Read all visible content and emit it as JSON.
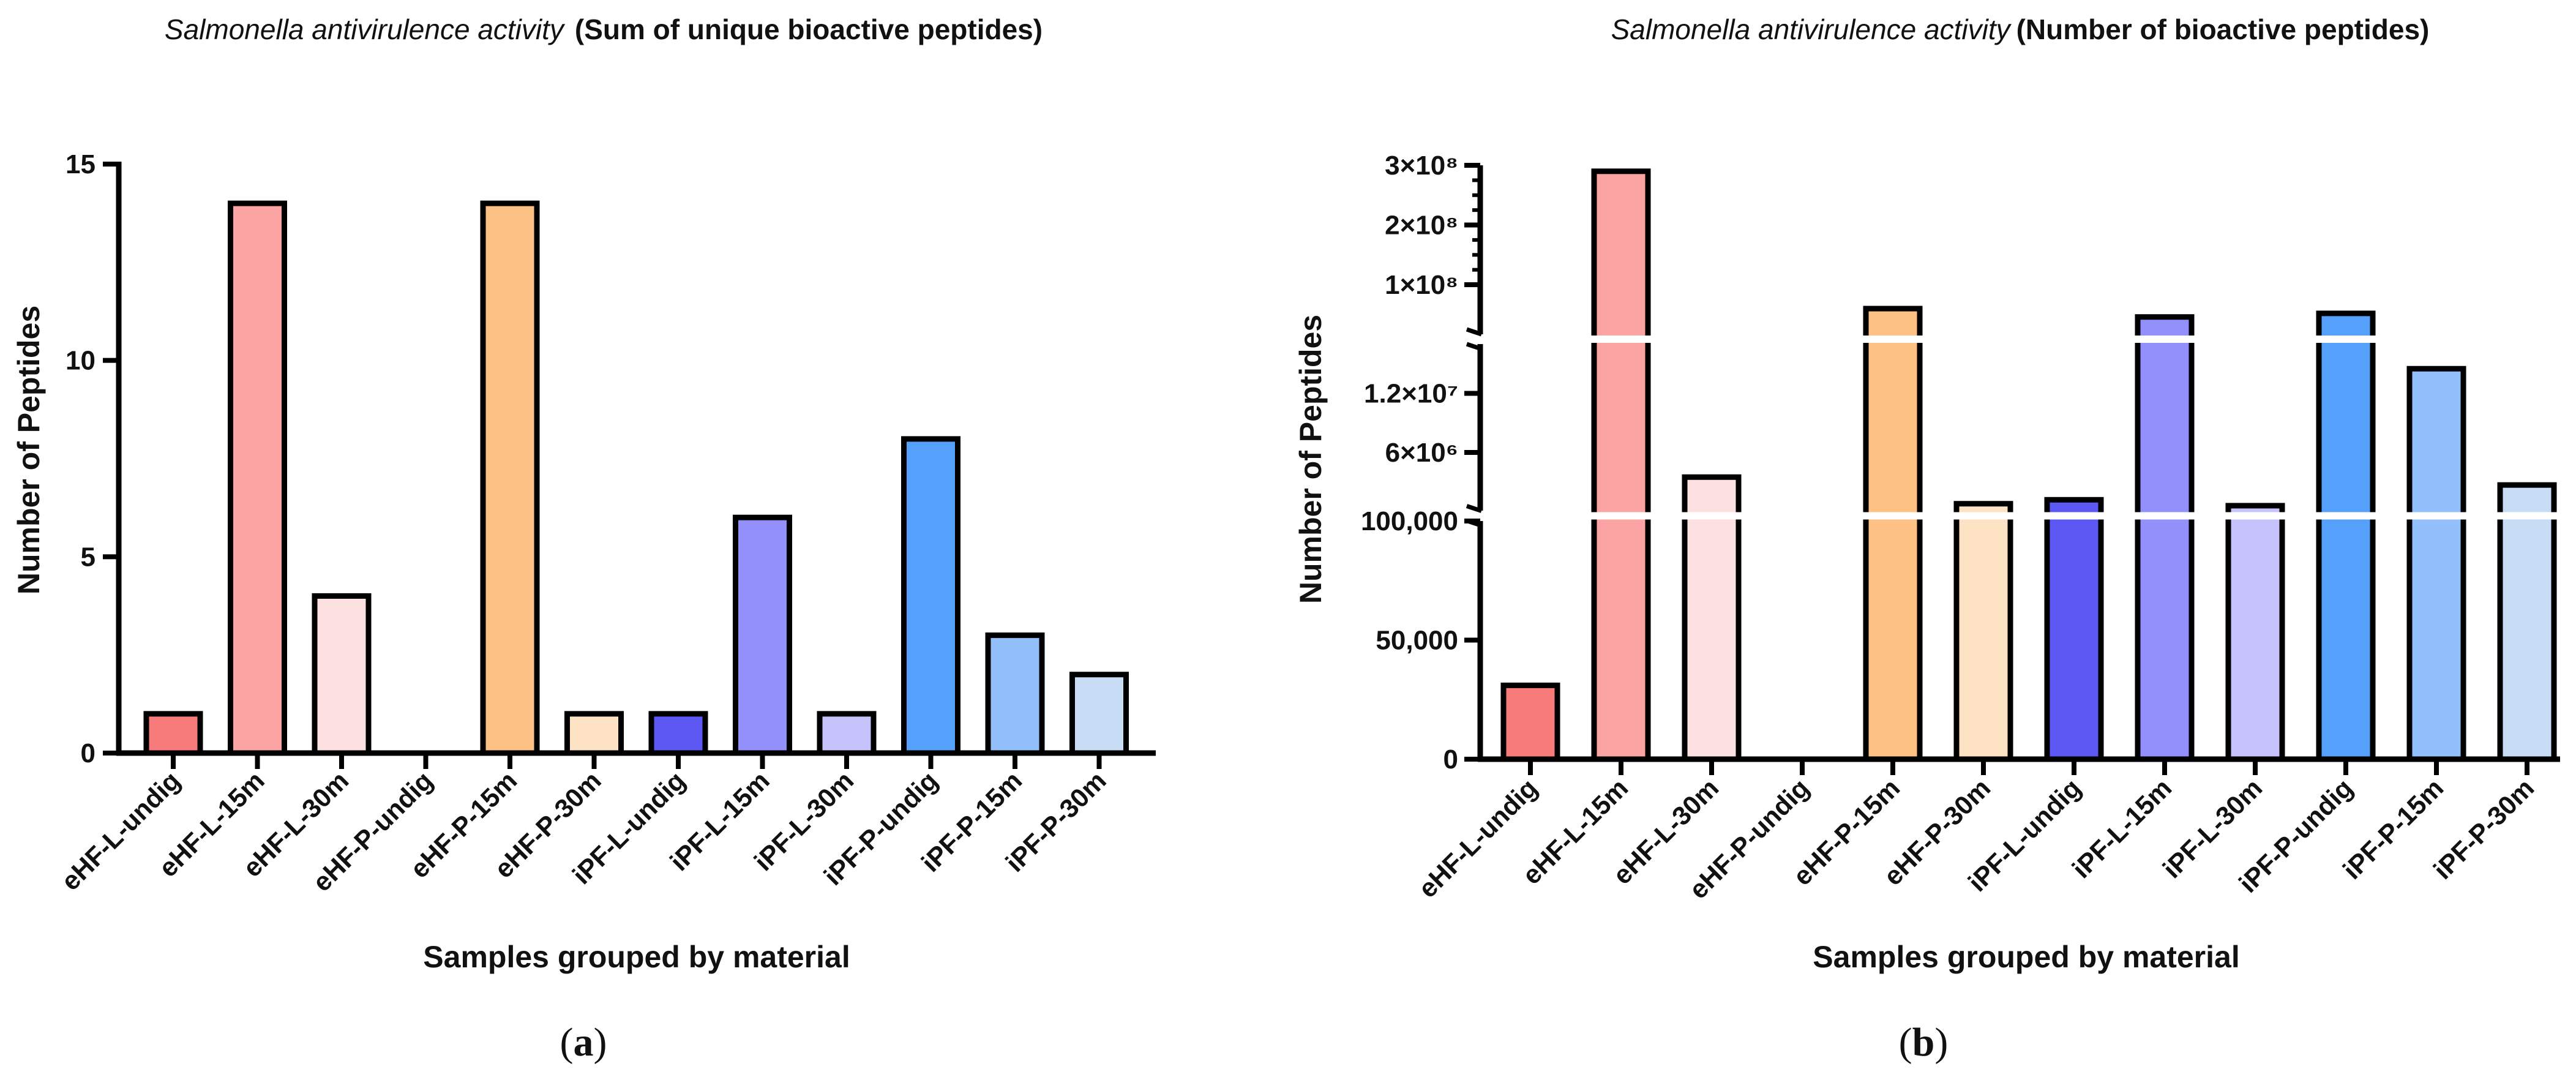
{
  "chart_data": [
    {
      "id": "a",
      "type": "bar",
      "title_italic": "Salmonella antivirulence activity",
      "title_bold": "(Sum of unique bioactive peptides)",
      "xlabel": "Samples grouped by material",
      "ylabel": "Number of Peptides",
      "ylim": [
        0,
        15
      ],
      "yticks": [
        0,
        5,
        10,
        15
      ],
      "ytick_labels": [
        "0",
        "5",
        "10",
        "15"
      ],
      "categories": [
        "eHF-L-undig",
        "eHF-L-15m",
        "eHF-L-30m",
        "eHF-P-undig",
        "eHF-P-15m",
        "eHF-P-30m",
        "iPF-L-undig",
        "iPF-L-15m",
        "iPF-L-30m",
        "iPF-P-undig",
        "iPF-P-15m",
        "iPF-P-30m"
      ],
      "values": [
        1,
        14,
        4,
        0,
        14,
        1,
        1,
        6,
        1,
        8,
        3,
        2
      ],
      "colors": [
        "#f77b7b",
        "#fca3a3",
        "#fde0e0",
        "#ffffff",
        "#fdc183",
        "#fee2c4",
        "#5b58f3",
        "#9390fb",
        "#c6c3fc",
        "#55a0fa",
        "#93c0fa",
        "#c8dcf6"
      ],
      "panel_label": [
        "(",
        "a",
        ")"
      ]
    },
    {
      "id": "b",
      "type": "bar",
      "axis_scale": "segmented (broken y-axis)",
      "title_italic": "Salmonella antivirulence activity",
      "title_bold": "(Number of bioactive peptides)",
      "xlabel": "Samples grouped by material",
      "ylabel": "Number of Peptides",
      "segments": [
        {
          "range": [
            0,
            100000
          ],
          "ticks": [
            0,
            50000,
            100000
          ],
          "tick_labels": [
            "0",
            "50,000",
            "100,000"
          ]
        },
        {
          "range": [
            100000,
            17000000
          ],
          "ticks": [
            6000000,
            12000000
          ],
          "tick_labels": [
            "6×10⁶",
            "1.2×10⁷"
          ]
        },
        {
          "range": [
            17000000,
            300000000
          ],
          "ticks": [
            100000000,
            200000000,
            300000000
          ],
          "tick_labels": [
            "1×10⁸",
            "2×10⁸",
            "3×10⁸"
          ]
        }
      ],
      "categories": [
        "eHF-L-undig",
        "eHF-L-15m",
        "eHF-L-30m",
        "eHF-P-undig",
        "eHF-P-15m",
        "eHF-P-30m",
        "iPF-L-undig",
        "iPF-L-15m",
        "iPF-L-30m",
        "iPF-P-undig",
        "iPF-P-15m",
        "iPF-P-30m"
      ],
      "values": [
        31000,
        290000000,
        3500000,
        0,
        60000000,
        800000,
        1200000,
        46000000,
        600000,
        52000000,
        14500000,
        2700000
      ],
      "colors": [
        "#f77b7b",
        "#fca3a3",
        "#fde0e0",
        "#ffffff",
        "#fdc183",
        "#fee2c4",
        "#5b58f3",
        "#9390fb",
        "#c6c3fc",
        "#55a0fa",
        "#93c0fa",
        "#c8dcf6"
      ],
      "panel_label": [
        "(",
        "b",
        ")"
      ]
    }
  ]
}
